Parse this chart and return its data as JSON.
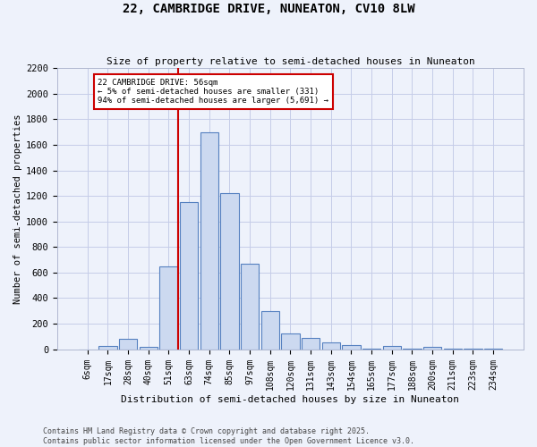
{
  "title1": "22, CAMBRIDGE DRIVE, NUNEATON, CV10 8LW",
  "title2": "Size of property relative to semi-detached houses in Nuneaton",
  "xlabel": "Distribution of semi-detached houses by size in Nuneaton",
  "ylabel": "Number of semi-detached properties",
  "bin_labels": [
    "6sqm",
    "17sqm",
    "28sqm",
    "40sqm",
    "51sqm",
    "63sqm",
    "74sqm",
    "85sqm",
    "97sqm",
    "108sqm",
    "120sqm",
    "131sqm",
    "143sqm",
    "154sqm",
    "165sqm",
    "177sqm",
    "188sqm",
    "200sqm",
    "211sqm",
    "223sqm",
    "234sqm"
  ],
  "bar_heights": [
    0,
    25,
    80,
    20,
    650,
    1150,
    1700,
    1225,
    670,
    295,
    125,
    90,
    50,
    30,
    5,
    25,
    5,
    15,
    5,
    5,
    5
  ],
  "bar_color": "#ccd9f0",
  "bar_edge_color": "#5580c0",
  "annotation_title": "22 CAMBRIDGE DRIVE: 56sqm",
  "annotation_line1": "← 5% of semi-detached houses are smaller (331)",
  "annotation_line2": "94% of semi-detached houses are larger (5,691) →",
  "annotation_box_color": "#ffffff",
  "annotation_box_edge": "#cc0000",
  "vertical_line_color": "#cc0000",
  "vertical_line_bin_index": 4,
  "ylim": [
    0,
    2200
  ],
  "yticks": [
    0,
    200,
    400,
    600,
    800,
    1000,
    1200,
    1400,
    1600,
    1800,
    2000,
    2200
  ],
  "footer1": "Contains HM Land Registry data © Crown copyright and database right 2025.",
  "footer2": "Contains public sector information licensed under the Open Government Licence v3.0.",
  "bg_color": "#eef2fb",
  "grid_color": "#c5cce8"
}
